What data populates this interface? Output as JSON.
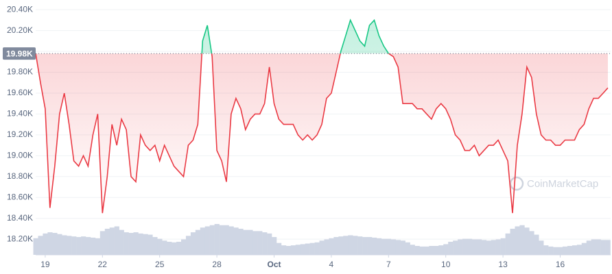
{
  "chart_data": {
    "type": "line",
    "categories": [
      null,
      null,
      "19",
      null,
      null,
      null,
      null,
      null,
      null,
      null,
      null,
      null,
      null,
      null,
      "22",
      null,
      null,
      null,
      null,
      null,
      null,
      null,
      null,
      null,
      null,
      null,
      "25",
      null,
      null,
      null,
      null,
      null,
      null,
      null,
      null,
      null,
      null,
      null,
      "28",
      null,
      null,
      null,
      null,
      null,
      null,
      null,
      null,
      null,
      null,
      null,
      "Oct",
      null,
      null,
      null,
      null,
      null,
      null,
      null,
      null,
      null,
      null,
      null,
      "4",
      null,
      null,
      null,
      null,
      null,
      null,
      null,
      null,
      null,
      null,
      null,
      "7",
      null,
      null,
      null,
      null,
      null,
      null,
      null,
      null,
      null,
      null,
      null,
      "10",
      null,
      null,
      null,
      null,
      null,
      null,
      null,
      null,
      null,
      null,
      null,
      "13",
      null,
      null,
      null,
      null,
      null,
      null,
      null,
      null,
      null,
      null,
      null,
      "16",
      null,
      null,
      null,
      null,
      null,
      null,
      null,
      null,
      null,
      null
    ],
    "series": [
      {
        "values": [
          19980,
          19700,
          19450,
          18500,
          18900,
          19400,
          19600,
          19300,
          18950,
          18900,
          19000,
          18900,
          19200,
          19400,
          18450,
          18800,
          19300,
          19100,
          19350,
          19250,
          18800,
          18750,
          19200,
          19100,
          19050,
          19100,
          18950,
          19100,
          19000,
          18900,
          18850,
          18800,
          19100,
          19150,
          19300,
          20100,
          20250,
          19950,
          19050,
          18950,
          18750,
          19400,
          19550,
          19450,
          19250,
          19350,
          19400,
          19400,
          19500,
          19850,
          19500,
          19350,
          19300,
          19300,
          19300,
          19200,
          19150,
          19200,
          19150,
          19200,
          19300,
          19550,
          19600,
          19800,
          20000,
          20150,
          20300,
          20200,
          20100,
          20050,
          20250,
          20300,
          20150,
          20050,
          19980,
          19950,
          19850,
          19500,
          19500,
          19500,
          19450,
          19450,
          19400,
          19350,
          19450,
          19500,
          19450,
          19350,
          19200,
          19150,
          19050,
          19050,
          19100,
          19000,
          19050,
          19100,
          19100,
          19150,
          19050,
          18950,
          18450,
          19100,
          19400,
          19850,
          19750,
          19400,
          19200,
          19150,
          19150,
          19100,
          19100,
          19150,
          19150,
          19150,
          19250,
          19300,
          19450,
          19550,
          19550,
          19600,
          19650
        ],
        "color_below": "#ea3943",
        "color_above": "#16c784"
      },
      {
        "values": [
          28,
          32,
          36,
          38,
          37,
          35,
          33,
          32,
          31,
          30,
          31,
          30,
          29,
          28,
          40,
          44,
          46,
          48,
          42,
          38,
          37,
          38,
          36,
          35,
          34,
          30,
          27,
          24,
          22,
          21,
          22,
          26,
          32,
          38,
          42,
          46,
          48,
          50,
          52,
          50,
          50,
          48,
          46,
          44,
          42,
          42,
          40,
          40,
          38,
          36,
          30,
          20,
          16,
          15,
          16,
          17,
          18,
          19,
          20,
          21,
          24,
          26,
          28,
          30,
          31,
          32,
          33,
          32,
          31,
          30,
          30,
          29,
          28,
          27,
          27,
          26,
          25,
          24,
          21,
          17,
          15,
          14,
          14,
          15,
          15,
          16,
          18,
          22,
          24,
          26,
          27,
          27,
          26,
          26,
          25,
          24,
          25,
          26,
          28,
          36,
          44,
          48,
          50,
          46,
          40,
          34,
          24,
          16,
          14,
          13,
          13,
          14,
          15,
          16,
          17,
          20,
          24,
          26,
          26,
          25,
          25
        ],
        "color": "#cfd6e4"
      }
    ],
    "ylim": [
      18050,
      20460
    ],
    "yticks": [
      {
        "value": 18200,
        "label": "18.20K"
      },
      {
        "value": 18400,
        "label": "18.40K"
      },
      {
        "value": 18600,
        "label": "18.60K"
      },
      {
        "value": 18800,
        "label": "18.80K"
      },
      {
        "value": 19000,
        "label": "19.00K"
      },
      {
        "value": 19200,
        "label": "19.20K"
      },
      {
        "value": 19400,
        "label": "19.40K"
      },
      {
        "value": 19600,
        "label": "19.60K"
      },
      {
        "value": 19800,
        "label": "19.80K"
      },
      {
        "value": 20000,
        "label": "20.00K"
      },
      {
        "value": 20200,
        "label": "20.20K"
      },
      {
        "value": 20400,
        "label": "20.40K"
      }
    ],
    "baseline": {
      "value": 19980,
      "label": "19.98K"
    },
    "grid": true,
    "watermark": "CoinMarketCap"
  }
}
